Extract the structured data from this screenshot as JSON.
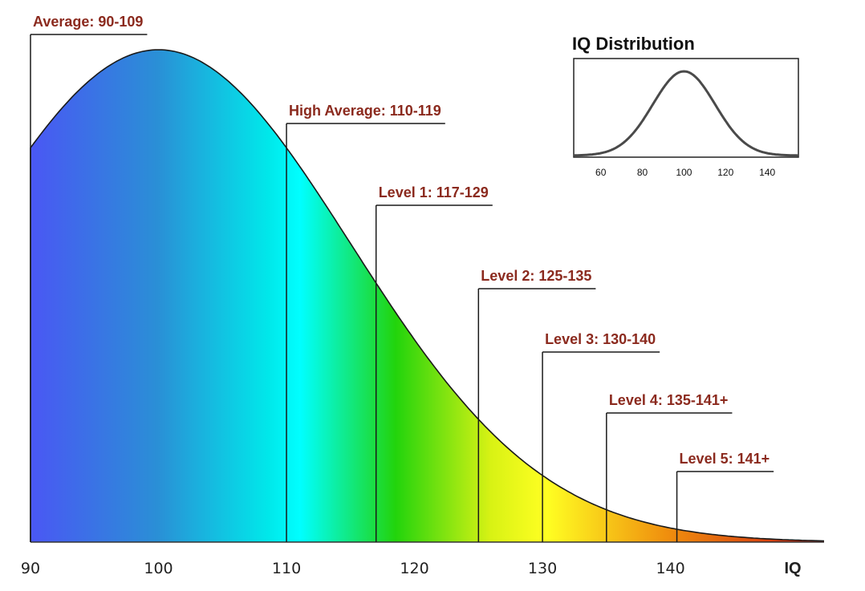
{
  "chart_data": [
    {
      "type": "area",
      "title": "",
      "xlabel": "IQ",
      "ylabel": "",
      "xlim": [
        90,
        152
      ],
      "distribution": {
        "mean": 100,
        "sd": 15
      },
      "x_ticks": [
        90,
        100,
        110,
        120,
        130,
        140
      ],
      "tick_labels": [
        "90",
        "100",
        "110",
        "120",
        "130",
        "140"
      ],
      "gradient_colors": [
        "#4a57f4",
        "#2a8fd6",
        "#00e8ea",
        "#00ffff",
        "#22d40c",
        "#d8f214",
        "#ffff22",
        "#f0900e",
        "#cc1a10"
      ],
      "label_color": "#8b2a1e",
      "levels": [
        {
          "label": "Average: 90-109",
          "iq": 90
        },
        {
          "label": "High Average: 110-119",
          "iq": 110
        },
        {
          "label": "Level 1: 117-129",
          "iq": 117
        },
        {
          "label": "Level 2: 125-135",
          "iq": 125
        },
        {
          "label": "Level 3: 130-140",
          "iq": 130
        },
        {
          "label": "Level 4: 135-141+",
          "iq": 135
        },
        {
          "label": "Level 5: 141+",
          "iq": 140.5
        }
      ],
      "grid": false,
      "legend": "none"
    },
    {
      "type": "line",
      "title": "IQ Distribution",
      "xlabel": "",
      "ylabel": "",
      "xlim": [
        47,
        155
      ],
      "distribution": {
        "mean": 100,
        "sd": 15
      },
      "x_ticks": [
        60,
        80,
        100,
        120,
        140
      ],
      "tick_labels": [
        "60",
        "80",
        "100",
        "120",
        "140"
      ],
      "grid": false,
      "legend": "none"
    }
  ]
}
